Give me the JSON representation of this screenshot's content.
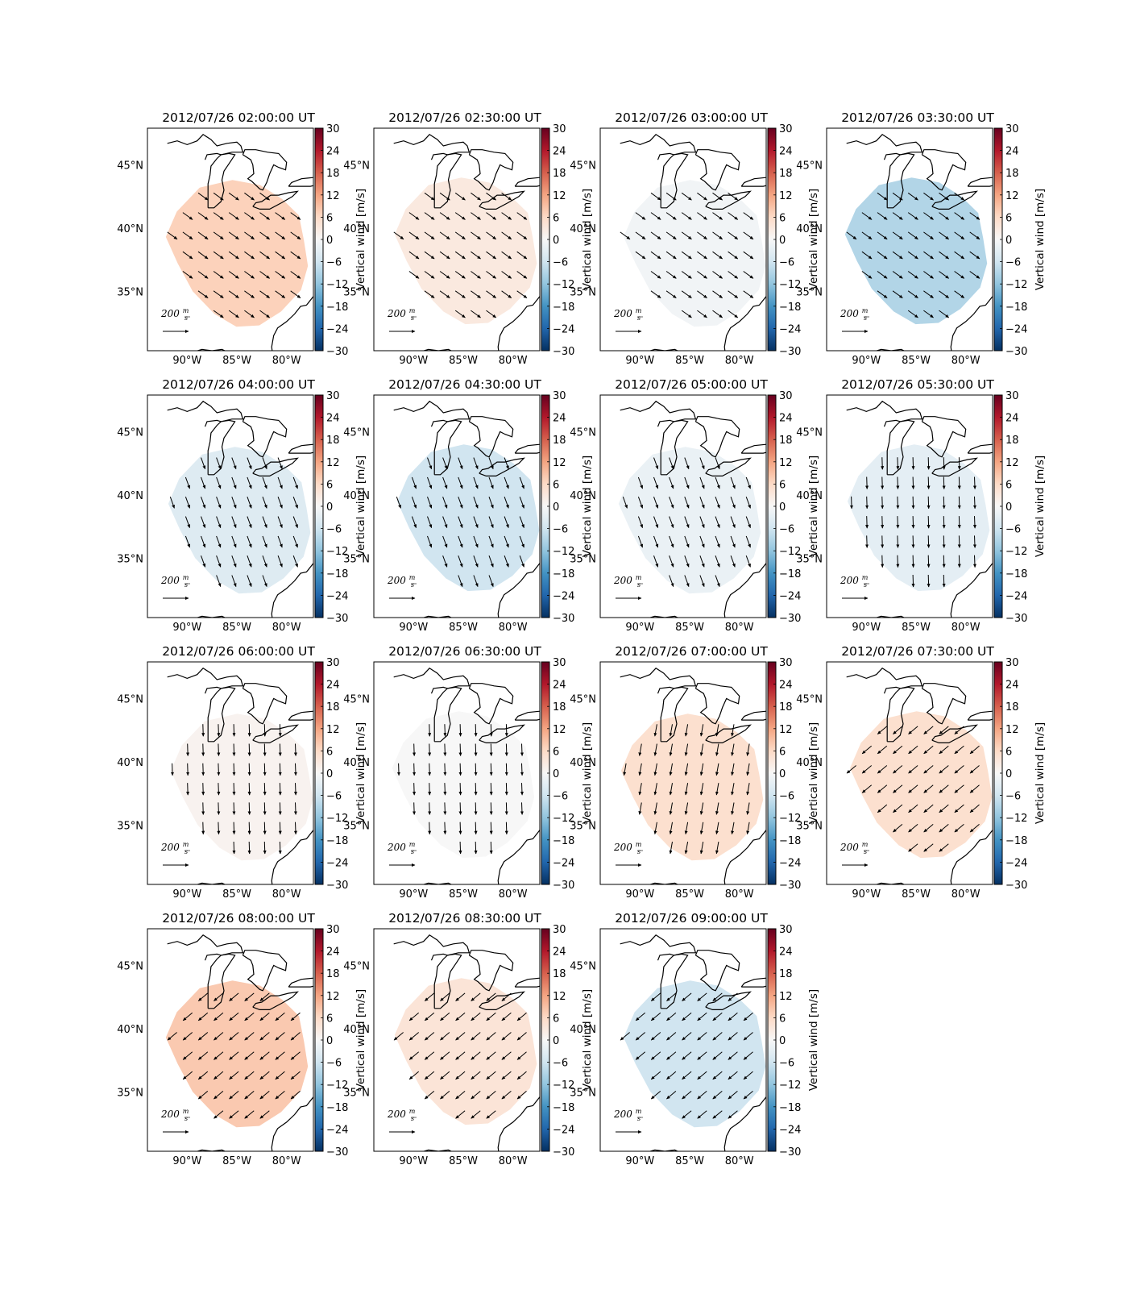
{
  "figure": {
    "name": "Vertical wind map time series"
  },
  "shared": {
    "lat_ticks": [
      "45°N",
      "40°N",
      "35°N"
    ],
    "lon_ticks": [
      "90°W",
      "85°W",
      "80°W"
    ],
    "colorbar": {
      "label": "Vertical wind [m/s]",
      "ticks": [
        "30",
        "24",
        "18",
        "12",
        "6",
        "0",
        "−6",
        "−12",
        "−18",
        "−24",
        "−30"
      ],
      "range": [
        -30,
        30
      ],
      "colormap": "RdBu_r",
      "colors_high_to_low": [
        "#67001f",
        "#b2182b",
        "#d6604d",
        "#f4a582",
        "#fddbc7",
        "#f7f7f7",
        "#d1e5f0",
        "#92c5de",
        "#4393c3",
        "#2166ac",
        "#053061"
      ]
    },
    "reference_arrow": {
      "value": "200",
      "unit_num": "m",
      "unit_den": "s"
    }
  },
  "chart_data": [
    {
      "type": "heatmap",
      "title": "2012/07/26 02:00:00 UT",
      "vertical_wind_ms": 7,
      "arrow_direction": "southeast"
    },
    {
      "type": "heatmap",
      "title": "2012/07/26 02:30:00 UT",
      "vertical_wind_ms": 3,
      "arrow_direction": "southeast"
    },
    {
      "type": "heatmap",
      "title": "2012/07/26 03:00:00 UT",
      "vertical_wind_ms": -1,
      "arrow_direction": "southeast"
    },
    {
      "type": "heatmap",
      "title": "2012/07/26 03:30:00 UT",
      "vertical_wind_ms": -9,
      "arrow_direction": "southeast"
    },
    {
      "type": "heatmap",
      "title": "2012/07/26 04:00:00 UT",
      "vertical_wind_ms": -4,
      "arrow_direction": "south-southeast"
    },
    {
      "type": "heatmap",
      "title": "2012/07/26 04:30:00 UT",
      "vertical_wind_ms": -6,
      "arrow_direction": "south-southeast"
    },
    {
      "type": "heatmap",
      "title": "2012/07/26 05:00:00 UT",
      "vertical_wind_ms": -2,
      "arrow_direction": "south-southeast"
    },
    {
      "type": "heatmap",
      "title": "2012/07/26 05:30:00 UT",
      "vertical_wind_ms": -3,
      "arrow_direction": "south"
    },
    {
      "type": "heatmap",
      "title": "2012/07/26 06:00:00 UT",
      "vertical_wind_ms": 1,
      "arrow_direction": "south"
    },
    {
      "type": "heatmap",
      "title": "2012/07/26 06:30:00 UT",
      "vertical_wind_ms": 0,
      "arrow_direction": "south"
    },
    {
      "type": "heatmap",
      "title": "2012/07/26 07:00:00 UT",
      "vertical_wind_ms": 5,
      "arrow_direction": "south-southwest"
    },
    {
      "type": "heatmap",
      "title": "2012/07/26 07:30:00 UT",
      "vertical_wind_ms": 5,
      "arrow_direction": "southwest"
    },
    {
      "type": "heatmap",
      "title": "2012/07/26 08:00:00 UT",
      "vertical_wind_ms": 8,
      "arrow_direction": "southwest"
    },
    {
      "type": "heatmap",
      "title": "2012/07/26 08:30:00 UT",
      "vertical_wind_ms": 4,
      "arrow_direction": "southwest"
    },
    {
      "type": "heatmap",
      "title": "2012/07/26 09:00:00 UT",
      "vertical_wind_ms": -6,
      "arrow_direction": "southwest"
    }
  ]
}
